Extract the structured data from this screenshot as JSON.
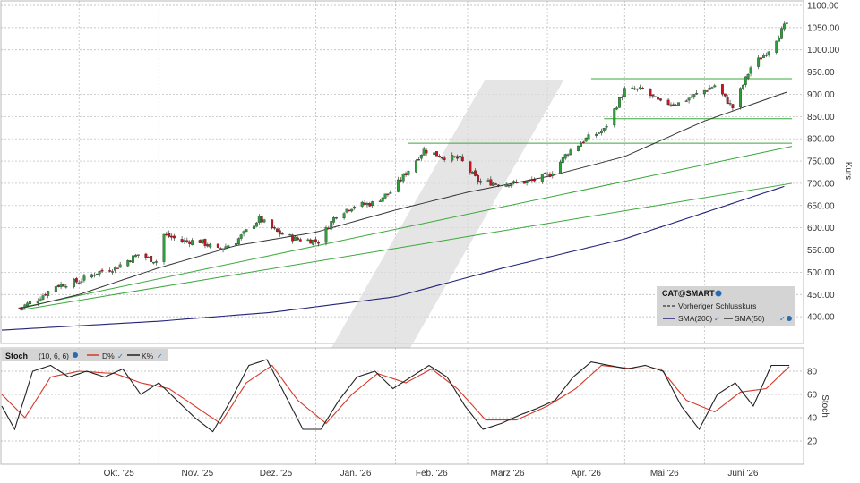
{
  "chart_data": [
    {
      "type": "candlestick",
      "ylabel": "Kurs",
      "ylim": [
        340,
        1110
      ],
      "yticks": [
        400,
        450,
        500,
        550,
        600,
        650,
        700,
        750,
        800,
        850,
        900,
        950,
        1000,
        1050,
        1100
      ],
      "ytick_labels": [
        "400.00",
        "450.00",
        "500.00",
        "550.00",
        "600.00",
        "650.00",
        "700.00",
        "750.00",
        "800.00",
        "850.00",
        "900.00",
        "950.00",
        "1000.00",
        "1050.00",
        "1100.00"
      ],
      "x_month_labels": [
        "Okt. '25",
        "Nov. '25",
        "Dez. '25",
        "Jan. '26",
        "Feb. '26",
        "März '26",
        "Apr. '26",
        "Mai '26",
        "Juni '26"
      ],
      "grid": true,
      "legend_placement": "bottom-right",
      "legend": {
        "title": "CAT@SMART",
        "prev_close": "Vorheriger Schlusskurs",
        "sma200": "SMA(200)",
        "sma50": "SMA(50)"
      },
      "colors": {
        "up": "#2e9e3a",
        "down": "#c8141e",
        "sma200": "#23237a",
        "sma50": "#333333",
        "trend": "#3aa83a",
        "grid": "#b4b4b4",
        "legend_bg": "#d4d4d4"
      },
      "close_anchors": [
        {
          "date": "2025-09-08",
          "close": 420
        },
        {
          "date": "2025-09-15",
          "close": 440
        },
        {
          "date": "2025-09-22",
          "close": 470
        },
        {
          "date": "2025-10-01",
          "close": 480
        },
        {
          "date": "2025-10-08",
          "close": 500
        },
        {
          "date": "2025-10-15",
          "close": 510
        },
        {
          "date": "2025-10-24",
          "close": 540
        },
        {
          "date": "2025-10-31",
          "close": 525
        },
        {
          "date": "2025-11-03",
          "close": 585
        },
        {
          "date": "2025-11-10",
          "close": 570
        },
        {
          "date": "2025-11-17",
          "close": 570
        },
        {
          "date": "2025-11-24",
          "close": 550
        },
        {
          "date": "2025-12-01",
          "close": 570
        },
        {
          "date": "2025-12-10",
          "close": 620
        },
        {
          "date": "2025-12-17",
          "close": 590
        },
        {
          "date": "2025-12-24",
          "close": 575
        },
        {
          "date": "2026-01-02",
          "close": 570
        },
        {
          "date": "2026-01-09",
          "close": 630
        },
        {
          "date": "2026-01-16",
          "close": 650
        },
        {
          "date": "2026-01-23",
          "close": 655
        },
        {
          "date": "2026-01-30",
          "close": 680
        },
        {
          "date": "2026-02-06",
          "close": 730
        },
        {
          "date": "2026-02-12",
          "close": 775
        },
        {
          "date": "2026-02-19",
          "close": 760
        },
        {
          "date": "2026-02-26",
          "close": 755
        },
        {
          "date": "2026-03-05",
          "close": 705
        },
        {
          "date": "2026-03-12",
          "close": 700
        },
        {
          "date": "2026-03-19",
          "close": 700
        },
        {
          "date": "2026-03-26",
          "close": 705
        },
        {
          "date": "2026-04-02",
          "close": 720
        },
        {
          "date": "2026-04-09",
          "close": 770
        },
        {
          "date": "2026-04-16",
          "close": 800
        },
        {
          "date": "2026-04-23",
          "close": 820
        },
        {
          "date": "2026-05-01",
          "close": 910
        },
        {
          "date": "2026-05-08",
          "close": 910
        },
        {
          "date": "2026-05-15",
          "close": 880
        },
        {
          "date": "2026-05-22",
          "close": 880
        },
        {
          "date": "2026-05-29",
          "close": 900
        },
        {
          "date": "2026-06-05",
          "close": 920
        },
        {
          "date": "2026-06-12",
          "close": 870
        },
        {
          "date": "2026-06-19",
          "close": 960
        },
        {
          "date": "2026-06-26",
          "close": 1000
        },
        {
          "date": "2026-07-03",
          "close": 1060
        }
      ],
      "sma50": [
        {
          "date": "2025-09-08",
          "value": 418
        },
        {
          "date": "2025-10-01",
          "value": 450
        },
        {
          "date": "2025-11-01",
          "value": 510
        },
        {
          "date": "2025-12-01",
          "value": 560
        },
        {
          "date": "2026-01-01",
          "value": 590
        },
        {
          "date": "2026-02-01",
          "value": 640
        },
        {
          "date": "2026-03-01",
          "value": 680
        },
        {
          "date": "2026-04-01",
          "value": 715
        },
        {
          "date": "2026-05-01",
          "value": 760
        },
        {
          "date": "2026-06-01",
          "value": 840
        },
        {
          "date": "2026-07-03",
          "value": 905
        }
      ],
      "sma200": [
        {
          "date": "2025-09-01",
          "value": 370
        },
        {
          "date": "2025-11-01",
          "value": 390
        },
        {
          "date": "2025-12-15",
          "value": 410
        },
        {
          "date": "2026-02-01",
          "value": 445
        },
        {
          "date": "2026-03-15",
          "value": 510
        },
        {
          "date": "2026-05-01",
          "value": 575
        },
        {
          "date": "2026-07-03",
          "value": 695
        }
      ],
      "trend_lines": [
        {
          "from": {
            "date": "2025-09-08",
            "value": 420
          },
          "to": {
            "date": "2026-07-05",
            "value": 783
          }
        },
        {
          "from": {
            "date": "2025-09-08",
            "value": 415
          },
          "to": {
            "date": "2026-07-05",
            "value": 700
          }
        }
      ],
      "resistance_lines": [
        {
          "from_date": "2026-02-06",
          "to_date": "2026-07-05",
          "value": 790
        },
        {
          "from_date": "2026-04-23",
          "to_date": "2026-07-05",
          "value": 845
        },
        {
          "from_date": "2026-04-18",
          "to_date": "2026-07-05",
          "value": 935
        }
      ]
    },
    {
      "type": "line",
      "ylabel": "Stoch",
      "ylim": [
        0,
        100
      ],
      "yticks": [
        20,
        40,
        60,
        80
      ],
      "ytick_labels": [
        "20",
        "40",
        "60",
        "80"
      ],
      "legend": {
        "title": "Stoch",
        "params": "(10, 6, 6)",
        "d": "D%",
        "k": "K%"
      },
      "colors": {
        "d": "#d43a2a",
        "k": "#222222"
      },
      "k_anchors": [
        {
          "date": "2025-09-01",
          "value": 50
        },
        {
          "date": "2025-09-06",
          "value": 30
        },
        {
          "date": "2025-09-13",
          "value": 80
        },
        {
          "date": "2025-09-20",
          "value": 85
        },
        {
          "date": "2025-09-27",
          "value": 75
        },
        {
          "date": "2025-10-04",
          "value": 80
        },
        {
          "date": "2025-10-11",
          "value": 75
        },
        {
          "date": "2025-10-18",
          "value": 82
        },
        {
          "date": "2025-10-25",
          "value": 60
        },
        {
          "date": "2025-11-01",
          "value": 70
        },
        {
          "date": "2025-11-08",
          "value": 55
        },
        {
          "date": "2025-11-15",
          "value": 40
        },
        {
          "date": "2025-11-22",
          "value": 28
        },
        {
          "date": "2025-11-29",
          "value": 55
        },
        {
          "date": "2025-12-06",
          "value": 85
        },
        {
          "date": "2025-12-13",
          "value": 90
        },
        {
          "date": "2025-12-20",
          "value": 60
        },
        {
          "date": "2025-12-27",
          "value": 30
        },
        {
          "date": "2026-01-03",
          "value": 30
        },
        {
          "date": "2026-01-10",
          "value": 55
        },
        {
          "date": "2026-01-17",
          "value": 75
        },
        {
          "date": "2026-01-24",
          "value": 80
        },
        {
          "date": "2026-01-31",
          "value": 65
        },
        {
          "date": "2026-02-07",
          "value": 75
        },
        {
          "date": "2026-02-14",
          "value": 85
        },
        {
          "date": "2026-02-21",
          "value": 75
        },
        {
          "date": "2026-02-28",
          "value": 50
        },
        {
          "date": "2026-03-07",
          "value": 30
        },
        {
          "date": "2026-03-14",
          "value": 35
        },
        {
          "date": "2026-03-21",
          "value": 42
        },
        {
          "date": "2026-03-28",
          "value": 48
        },
        {
          "date": "2026-04-04",
          "value": 55
        },
        {
          "date": "2026-04-11",
          "value": 75
        },
        {
          "date": "2026-04-18",
          "value": 88
        },
        {
          "date": "2026-04-25",
          "value": 85
        },
        {
          "date": "2026-05-02",
          "value": 82
        },
        {
          "date": "2026-05-09",
          "value": 85
        },
        {
          "date": "2026-05-16",
          "value": 80
        },
        {
          "date": "2026-05-23",
          "value": 50
        },
        {
          "date": "2026-05-30",
          "value": 30
        },
        {
          "date": "2026-06-06",
          "value": 60
        },
        {
          "date": "2026-06-13",
          "value": 70
        },
        {
          "date": "2026-06-20",
          "value": 50
        },
        {
          "date": "2026-06-27",
          "value": 85
        },
        {
          "date": "2026-07-04",
          "value": 85
        }
      ],
      "d_anchors": [
        {
          "date": "2025-09-01",
          "value": 60
        },
        {
          "date": "2025-09-10",
          "value": 40
        },
        {
          "date": "2025-09-20",
          "value": 75
        },
        {
          "date": "2025-10-01",
          "value": 80
        },
        {
          "date": "2025-10-15",
          "value": 78
        },
        {
          "date": "2025-10-25",
          "value": 70
        },
        {
          "date": "2025-11-05",
          "value": 65
        },
        {
          "date": "2025-11-15",
          "value": 50
        },
        {
          "date": "2025-11-25",
          "value": 35
        },
        {
          "date": "2025-12-05",
          "value": 70
        },
        {
          "date": "2025-12-15",
          "value": 85
        },
        {
          "date": "2025-12-25",
          "value": 55
        },
        {
          "date": "2026-01-05",
          "value": 35
        },
        {
          "date": "2026-01-15",
          "value": 60
        },
        {
          "date": "2026-01-25",
          "value": 78
        },
        {
          "date": "2026-02-05",
          "value": 70
        },
        {
          "date": "2026-02-15",
          "value": 82
        },
        {
          "date": "2026-02-25",
          "value": 65
        },
        {
          "date": "2026-03-08",
          "value": 38
        },
        {
          "date": "2026-03-20",
          "value": 38
        },
        {
          "date": "2026-04-01",
          "value": 50
        },
        {
          "date": "2026-04-12",
          "value": 65
        },
        {
          "date": "2026-04-22",
          "value": 85
        },
        {
          "date": "2026-05-05",
          "value": 82
        },
        {
          "date": "2026-05-15",
          "value": 82
        },
        {
          "date": "2026-05-25",
          "value": 55
        },
        {
          "date": "2026-06-05",
          "value": 45
        },
        {
          "date": "2026-06-15",
          "value": 62
        },
        {
          "date": "2026-06-25",
          "value": 65
        },
        {
          "date": "2026-07-04",
          "value": 84
        }
      ]
    }
  ]
}
